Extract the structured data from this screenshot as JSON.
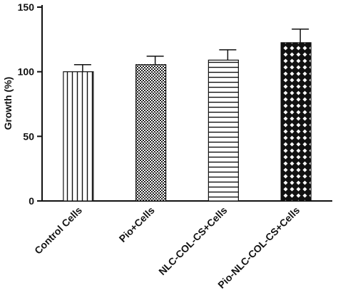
{
  "chart_data": {
    "type": "bar",
    "title": "",
    "xlabel": "",
    "ylabel": "Growth (%)",
    "ylim": [
      0,
      150
    ],
    "yticks": [
      0,
      50,
      100,
      150
    ],
    "grid": false,
    "categories": [
      "Control Cells",
      "Pio+Cells",
      "NLC-COL-CS+Cells",
      "Pio-NLC-COL-CS+Cells"
    ],
    "values": [
      100,
      105.5,
      109,
      122.5
    ],
    "errors": [
      5.5,
      6.5,
      8,
      10.5
    ],
    "patterns": [
      "vertical-lines",
      "checkerboard",
      "horizontal-lines",
      "diamond-crosshatch"
    ]
  }
}
